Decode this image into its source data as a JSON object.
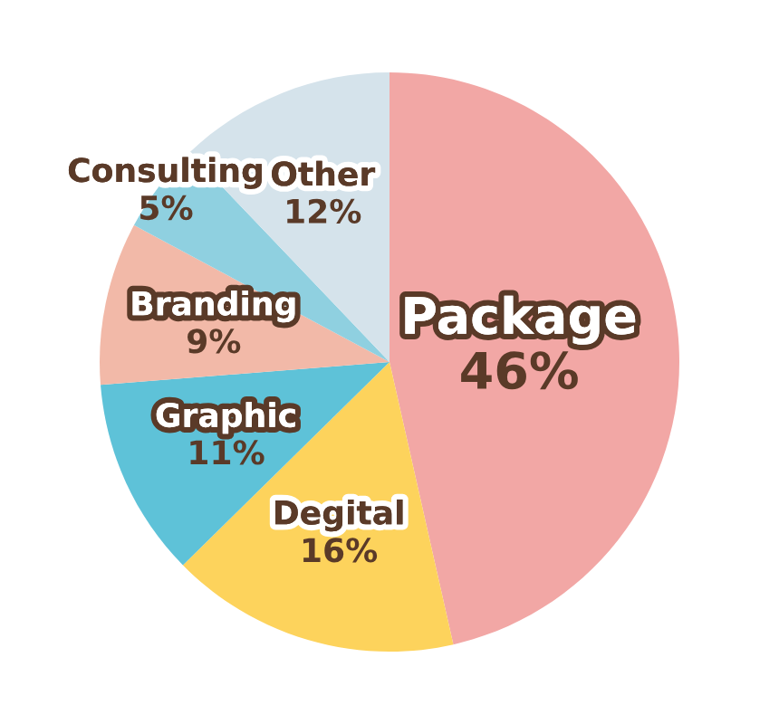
{
  "chart_data": {
    "type": "pie",
    "categories": [
      "Package",
      "Degital",
      "Graphic",
      "Branding",
      "Consulting",
      "Other"
    ],
    "values": [
      46,
      16,
      11,
      9,
      5,
      12
    ],
    "value_labels": [
      "46%",
      "16%",
      "11%",
      "9%",
      "5%",
      "12%"
    ],
    "colors": [
      "#f2a7a5",
      "#fdd35c",
      "#5ec2d8",
      "#f2b9a8",
      "#8fd0e0",
      "#d5e3eb"
    ]
  }
}
